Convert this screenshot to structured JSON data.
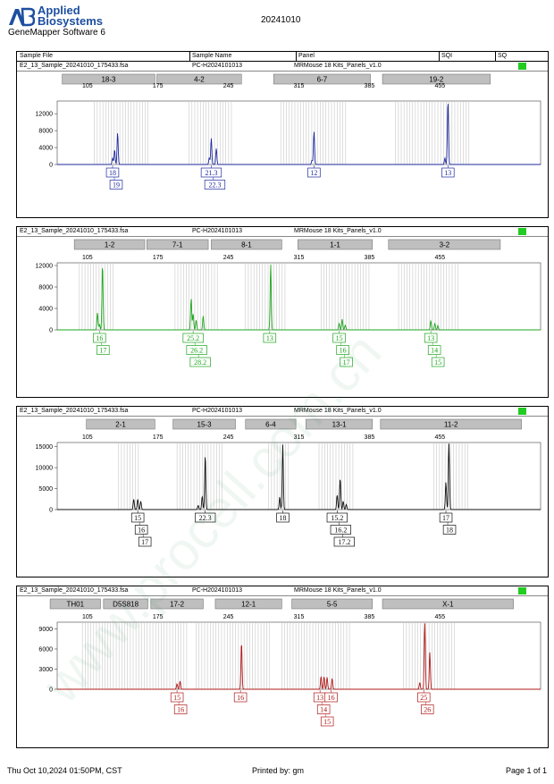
{
  "header": {
    "brand_line1": "Applied",
    "brand_line2": "Biosystems",
    "software": "GeneMapper Software 6",
    "run_date": "20241010"
  },
  "columns": [
    "Sample File",
    "Sample Name",
    "Panel",
    "SQI",
    "SQ"
  ],
  "footer": {
    "datetime": "Thu Oct 10,2024 01:50PM, CST",
    "printed_by": "Printed by: gm",
    "page": "Page 1 of 1"
  },
  "watermark": "www.procell.com.cn",
  "colors": {
    "blue": "#1f2a9e",
    "green": "#1ea51e",
    "black": "#111111",
    "red": "#b01818",
    "sq_ok": "#22cc22"
  },
  "chart_data": [
    {
      "type": "line",
      "sample_file": "E2_13_Sample_20241010_175433.fsa",
      "sample_name": "PC-H2024101013",
      "panel": "MRMouse 18 Kits_Panels_v1.0",
      "dye": "blue",
      "xlim": [
        75,
        555
      ],
      "x_ticks": [
        105,
        175,
        245,
        315,
        385,
        455
      ],
      "ylim": [
        0,
        15000
      ],
      "y_ticks": [
        0,
        4000,
        8000,
        12000
      ],
      "markers": [
        {
          "label": "18-3",
          "start": 80,
          "end": 172
        },
        {
          "label": "4-2",
          "start": 174,
          "end": 258
        },
        {
          "label": "6-7",
          "start": 290,
          "end": 386
        },
        {
          "label": "19-2",
          "start": 398,
          "end": 505
        }
      ],
      "bins": [
        [
          112,
          168
        ],
        [
          206,
          249
        ],
        [
          297,
          364
        ],
        [
          411,
          484
        ]
      ],
      "peaks": [
        {
          "x": 130,
          "y": 1500
        },
        {
          "x": 132,
          "y": 3500
        },
        {
          "x": 135,
          "y": 7500
        },
        {
          "x": 226,
          "y": 1600
        },
        {
          "x": 228,
          "y": 6200
        },
        {
          "x": 233,
          "y": 3800
        },
        {
          "x": 328,
          "y": 1000
        },
        {
          "x": 330,
          "y": 7800
        },
        {
          "x": 460,
          "y": 1500
        },
        {
          "x": 463,
          "y": 15000
        }
      ],
      "alleles": [
        {
          "x": 130,
          "labels": [
            "18",
            "19"
          ]
        },
        {
          "x": 228,
          "labels": [
            "21.3",
            "22.3"
          ]
        },
        {
          "x": 330,
          "labels": [
            "12"
          ]
        },
        {
          "x": 463,
          "labels": [
            "13"
          ]
        }
      ]
    },
    {
      "type": "line",
      "sample_file": "E2_13_Sample_20241010_175433.fsa",
      "sample_name": "PC-H2024101013",
      "panel": "MRMouse 18 Kits_Panels_v1.0",
      "dye": "green",
      "xlim": [
        75,
        555
      ],
      "x_ticks": [
        105,
        175,
        245,
        315,
        385,
        455
      ],
      "ylim": [
        0,
        12500
      ],
      "y_ticks": [
        0,
        4000,
        8000,
        12000
      ],
      "markers": [
        {
          "label": "1-2",
          "start": 92,
          "end": 162
        },
        {
          "label": "7-1",
          "start": 164,
          "end": 225
        },
        {
          "label": "8-1",
          "start": 228,
          "end": 298
        },
        {
          "label": "1-1",
          "start": 314,
          "end": 388
        },
        {
          "label": "3-2",
          "start": 404,
          "end": 515
        }
      ],
      "bins": [
        [
          97,
          132
        ],
        [
          192,
          236
        ],
        [
          262,
          304
        ],
        [
          337,
          386
        ],
        [
          414,
          474
        ]
      ],
      "peaks": [
        {
          "x": 115,
          "y": 3200
        },
        {
          "x": 117,
          "y": 1000
        },
        {
          "x": 120,
          "y": 12200
        },
        {
          "x": 208,
          "y": 5800
        },
        {
          "x": 210,
          "y": 3000
        },
        {
          "x": 213,
          "y": 1800
        },
        {
          "x": 220,
          "y": 2600
        },
        {
          "x": 287,
          "y": 12200
        },
        {
          "x": 355,
          "y": 1200
        },
        {
          "x": 358,
          "y": 2000
        },
        {
          "x": 361,
          "y": 900
        },
        {
          "x": 446,
          "y": 1700
        },
        {
          "x": 450,
          "y": 1200
        },
        {
          "x": 453,
          "y": 800
        }
      ],
      "alleles": [
        {
          "x": 117,
          "labels": [
            "16",
            "17"
          ]
        },
        {
          "x": 210,
          "labels": [
            "25.2",
            "26.2",
            "28.2"
          ]
        },
        {
          "x": 286,
          "labels": [
            "13"
          ]
        },
        {
          "x": 355,
          "labels": [
            "15",
            "16",
            "17"
          ]
        },
        {
          "x": 446,
          "labels": [
            "13",
            "14",
            "15"
          ]
        }
      ]
    },
    {
      "type": "line",
      "sample_file": "E2_13_Sample_20241010_175433.fsa",
      "sample_name": "PC-H2024101013",
      "panel": "MRMouse 18 Kits_Panels_v1.0",
      "dye": "black",
      "xlim": [
        75,
        555
      ],
      "x_ticks": [
        105,
        175,
        245,
        315,
        385,
        455
      ],
      "ylim": [
        0,
        16000
      ],
      "y_ticks": [
        0,
        5000,
        10000,
        15000
      ],
      "markers": [
        {
          "label": "2-1",
          "start": 104,
          "end": 172
        },
        {
          "label": "15-3",
          "start": 190,
          "end": 252
        },
        {
          "label": "6-4",
          "start": 262,
          "end": 312
        },
        {
          "label": "13-1",
          "start": 322,
          "end": 388
        },
        {
          "label": "11-2",
          "start": 396,
          "end": 536
        }
      ],
      "bins": [
        [
          136,
          157
        ],
        [
          194,
          239
        ],
        [
          285,
          306
        ],
        [
          335,
          370
        ],
        [
          449,
          484
        ]
      ],
      "peaks": [
        {
          "x": 151,
          "y": 2500
        },
        {
          "x": 155,
          "y": 2500
        },
        {
          "x": 158,
          "y": 2000
        },
        {
          "x": 215,
          "y": 1000
        },
        {
          "x": 219,
          "y": 3200
        },
        {
          "x": 222,
          "y": 13000
        },
        {
          "x": 296,
          "y": 3000
        },
        {
          "x": 299,
          "y": 15500
        },
        {
          "x": 353,
          "y": 3500
        },
        {
          "x": 356,
          "y": 7500
        },
        {
          "x": 359,
          "y": 2000
        },
        {
          "x": 362,
          "y": 1200
        },
        {
          "x": 461,
          "y": 6500
        },
        {
          "x": 464,
          "y": 15800
        }
      ],
      "alleles": [
        {
          "x": 155,
          "labels": [
            "15",
            "16",
            "17"
          ]
        },
        {
          "x": 222,
          "labels": [
            "22.3"
          ]
        },
        {
          "x": 299,
          "labels": [
            "18"
          ]
        },
        {
          "x": 353,
          "labels": [
            "15.2",
            "16.2",
            "17.2"
          ]
        },
        {
          "x": 461,
          "labels": [
            "17",
            "18"
          ]
        }
      ]
    },
    {
      "type": "line",
      "sample_file": "E2_13_Sample_20241010_175433.fsa",
      "sample_name": "PC-H2024101013",
      "panel": "MRMouse 18 Kits_Panels_v1.0",
      "dye": "red",
      "xlim": [
        75,
        555
      ],
      "x_ticks": [
        105,
        175,
        245,
        315,
        385,
        455
      ],
      "ylim": [
        0,
        10000
      ],
      "y_ticks": [
        0,
        3000,
        6000,
        9000
      ],
      "markers": [
        {
          "label": "TH01",
          "start": 68,
          "end": 118
        },
        {
          "label": "D5S818",
          "start": 121,
          "end": 165
        },
        {
          "label": "17-2",
          "start": 168,
          "end": 220
        },
        {
          "label": "12-1",
          "start": 232,
          "end": 298
        },
        {
          "label": "5-5",
          "start": 308,
          "end": 388
        },
        {
          "label": "X-1",
          "start": 398,
          "end": 528
        }
      ],
      "bins": [
        [
          100,
          206
        ],
        [
          213,
          287
        ],
        [
          298,
          366
        ],
        [
          419,
          471
        ]
      ],
      "peaks": [
        {
          "x": 194,
          "y": 800
        },
        {
          "x": 197,
          "y": 1200
        },
        {
          "x": 258,
          "y": 7000
        },
        {
          "x": 337,
          "y": 1900
        },
        {
          "x": 340,
          "y": 1900
        },
        {
          "x": 343,
          "y": 1800
        },
        {
          "x": 348,
          "y": 1600
        },
        {
          "x": 435,
          "y": 1000
        },
        {
          "x": 440,
          "y": 10000
        },
        {
          "x": 445,
          "y": 5500
        }
      ],
      "alleles": [
        {
          "x": 194,
          "labels": [
            "15",
            "16"
          ]
        },
        {
          "x": 257,
          "labels": [
            "16"
          ]
        },
        {
          "x": 336,
          "labels": [
            "13",
            "14",
            "15"
          ]
        },
        {
          "x": 347,
          "labels": [
            "16"
          ]
        },
        {
          "x": 439,
          "labels": [
            "25",
            "26"
          ]
        }
      ]
    }
  ]
}
